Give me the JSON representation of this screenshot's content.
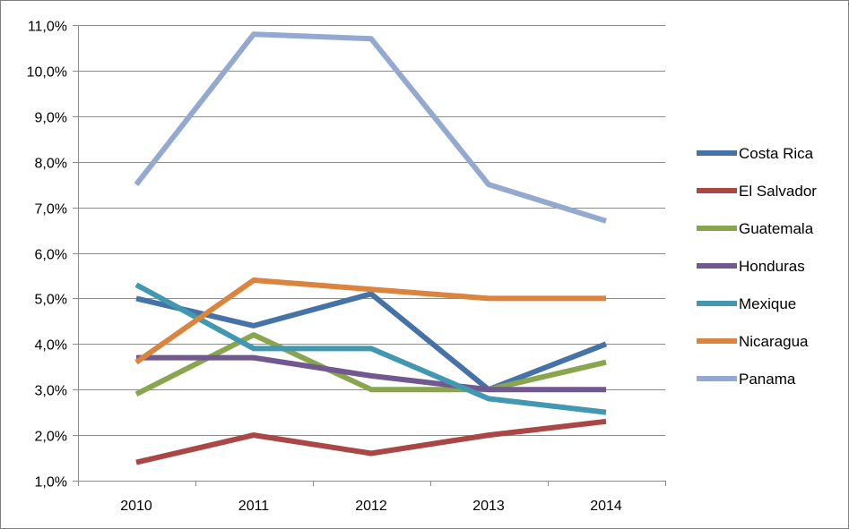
{
  "chart_data": {
    "type": "line",
    "title": "",
    "xlabel": "",
    "ylabel": "",
    "categories": [
      "2010",
      "2011",
      "2012",
      "2013",
      "2014"
    ],
    "ylim": [
      0.01,
      0.11
    ],
    "ytick_values": [
      0.01,
      0.02,
      0.03,
      0.04,
      0.05,
      0.06,
      0.07,
      0.08,
      0.09,
      0.1,
      0.11
    ],
    "ytick_labels": [
      "1,0%",
      "2,0%",
      "3,0%",
      "4,0%",
      "5,0%",
      "6,0%",
      "7,0%",
      "8,0%",
      "9,0%",
      "10,0%",
      "11,0%"
    ],
    "grid": true,
    "legend_position": "right",
    "series": [
      {
        "name": "Costa Rica",
        "color": "#4572a7",
        "values": [
          0.05,
          0.044,
          0.051,
          0.03,
          0.04
        ]
      },
      {
        "name": "El Salvador",
        "color": "#aa4643",
        "values": [
          0.014,
          0.02,
          0.016,
          0.02,
          0.023
        ]
      },
      {
        "name": "Guatemala",
        "color": "#89a54e",
        "values": [
          0.029,
          0.042,
          0.03,
          0.03,
          0.036
        ]
      },
      {
        "name": "Honduras",
        "color": "#71588f",
        "values": [
          0.037,
          0.037,
          0.033,
          0.03,
          0.03
        ]
      },
      {
        "name": "Mexique",
        "color": "#4198af",
        "values": [
          0.053,
          0.039,
          0.039,
          0.028,
          0.025
        ]
      },
      {
        "name": "Nicaragua",
        "color": "#db843d",
        "values": [
          0.036,
          0.054,
          0.052,
          0.05,
          0.05
        ]
      },
      {
        "name": "Panama",
        "color": "#93a9cf",
        "values": [
          0.075,
          0.108,
          0.107,
          0.075,
          0.067
        ]
      }
    ]
  }
}
